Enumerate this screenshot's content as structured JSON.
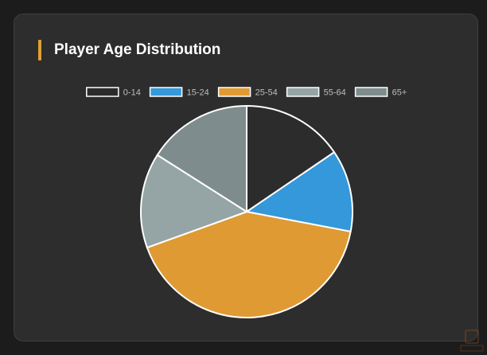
{
  "card": {
    "title": "Player Age Distribution"
  },
  "colors": {
    "accent": "#e0a033",
    "card_bg": "#2d2d2d",
    "page_bg": "#1c1c1c",
    "slice_border": "#ffffff"
  },
  "chart_data": {
    "type": "pie",
    "title": "Player Age Distribution",
    "categories": [
      "0-14",
      "15-24",
      "25-54",
      "55-64",
      "65+"
    ],
    "values": [
      15.5,
      12.5,
      41.5,
      14.5,
      16.0
    ],
    "colors": [
      "#2c2c2c",
      "#3498db",
      "#e09a33",
      "#95a5a6",
      "#7f8c8d"
    ],
    "legend": "top"
  }
}
